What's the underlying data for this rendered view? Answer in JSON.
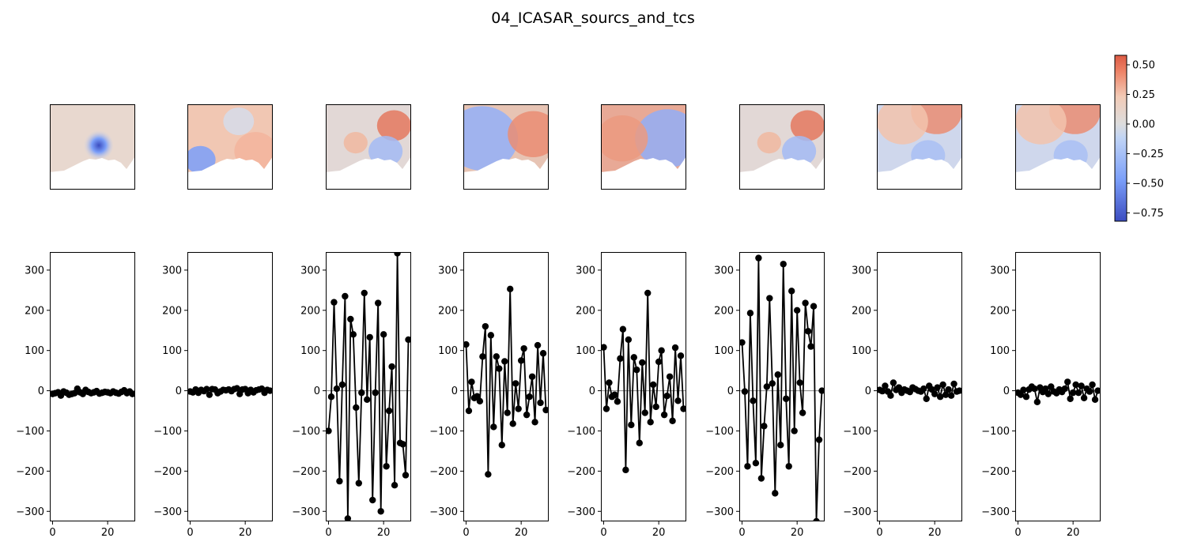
{
  "figure": {
    "title": "04_ICASAR_sourcs_and_tcs"
  },
  "colors": {
    "cmap_low": "#3b4cc0",
    "cmap_mid": "#dddddd",
    "cmap_high": "#dc5a44",
    "line": "#000000",
    "zero_line": "#888888"
  },
  "chart_data": [
    {
      "type": "heatmap",
      "description_role": "colorbar",
      "colormap": "coolwarm",
      "range": [
        -0.82,
        0.58
      ],
      "ticks": [
        0.5,
        0.25,
        0.0,
        -0.25,
        -0.5,
        -0.75
      ],
      "tick_labels": [
        "0.50",
        "0.25",
        "0.00",
        "−0.25",
        "−0.50",
        "−0.75"
      ]
    },
    {
      "type": "line",
      "x_ticks": [
        0,
        20
      ],
      "y_ticks": [
        300,
        200,
        100,
        0,
        -100,
        -200,
        -300
      ],
      "y_tick_labels": [
        "300",
        "200",
        "100",
        "0",
        "−100",
        "−200",
        "−300"
      ],
      "xlim": [
        -1,
        30
      ],
      "ylim": [
        -325,
        345
      ],
      "x": [
        0,
        1,
        2,
        3,
        4,
        5,
        6,
        7,
        8,
        9,
        10,
        11,
        12,
        13,
        14,
        15,
        16,
        17,
        18,
        19,
        20,
        21,
        22,
        23,
        24,
        25,
        26,
        27,
        28,
        29
      ],
      "series": [
        {
          "values": [
            -8,
            -6,
            -4,
            -12,
            -2,
            -5,
            -10,
            -8,
            -6,
            5,
            -4,
            -8,
            2,
            -3,
            -6,
            -4,
            -1,
            -7,
            -5,
            -3,
            -4,
            -6,
            -2,
            -5,
            -7,
            -3,
            1,
            -6,
            -2,
            -8
          ]
        },
        {
          "values": [
            -2,
            -4,
            3,
            -5,
            2,
            -1,
            4,
            -10,
            4,
            3,
            -6,
            -2,
            2,
            1,
            3,
            -1,
            4,
            6,
            -8,
            3,
            4,
            -6,
            2,
            -4,
            1,
            3,
            5,
            -5,
            2,
            0
          ]
        },
        {
          "values": [
            -100,
            -15,
            220,
            5,
            -225,
            15,
            235,
            -318,
            178,
            140,
            -42,
            -230,
            -5,
            243,
            -22,
            133,
            -272,
            -5,
            218,
            -300,
            140,
            -188,
            -50,
            60,
            -235,
            342,
            -130,
            -133,
            -210,
            127
          ]
        },
        {
          "values": [
            115,
            -50,
            22,
            -18,
            -14,
            -26,
            85,
            160,
            -208,
            138,
            -90,
            85,
            55,
            -135,
            73,
            -55,
            253,
            -82,
            18,
            -45,
            75,
            105,
            -60,
            -15,
            35,
            -78,
            113,
            -30,
            93,
            -48
          ]
        },
        {
          "values": [
            108,
            -45,
            20,
            -15,
            -10,
            -27,
            80,
            153,
            -197,
            127,
            -85,
            83,
            52,
            -130,
            70,
            -55,
            243,
            -78,
            15,
            -40,
            72,
            100,
            -60,
            -13,
            35,
            -75,
            107,
            -25,
            87,
            -45
          ]
        },
        {
          "values": [
            120,
            -2,
            -188,
            193,
            -25,
            -180,
            330,
            -218,
            -88,
            10,
            230,
            18,
            -255,
            40,
            -135,
            315,
            -20,
            -188,
            248,
            -100,
            200,
            20,
            -55,
            218,
            148,
            110,
            210,
            -325,
            -122,
            0
          ]
        },
        {
          "values": [
            2,
            -1,
            12,
            -2,
            -12,
            20,
            2,
            8,
            -5,
            3,
            0,
            -3,
            8,
            4,
            0,
            -2,
            5,
            -20,
            12,
            3,
            -8,
            8,
            -15,
            15,
            -10,
            3,
            -12,
            17,
            -2,
            0
          ]
        },
        {
          "values": [
            -5,
            -10,
            2,
            -15,
            3,
            10,
            5,
            -28,
            8,
            -3,
            5,
            -8,
            10,
            -2,
            -6,
            3,
            -3,
            5,
            22,
            -20,
            -5,
            15,
            -5,
            12,
            -18,
            5,
            -2,
            15,
            -22,
            0
          ]
        }
      ]
    }
  ]
}
